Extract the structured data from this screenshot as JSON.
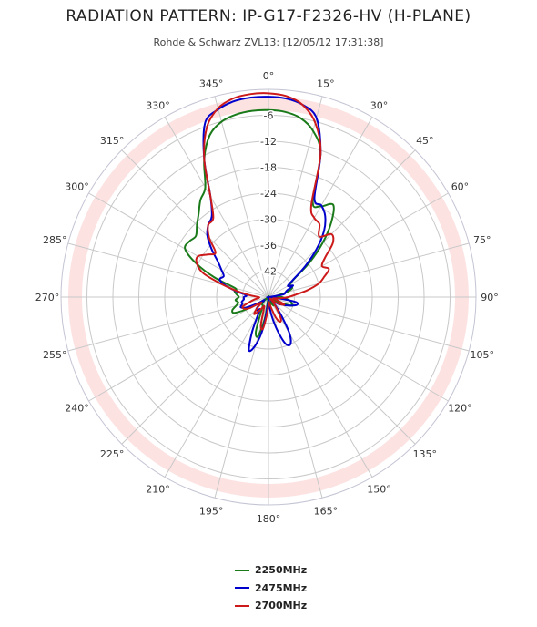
{
  "chart_data": {
    "type": "polar-line",
    "title": "RADIATION PATTERN: IP-G17-F2326-HV (H-PLANE)",
    "subtitle": "Rohde & Schwarz ZVL13: [12/05/12 17:31:38]",
    "angle_unit": "degrees",
    "angle_ticks": [
      "0°",
      "15°",
      "30°",
      "45°",
      "60°",
      "75°",
      "90°",
      "105°",
      "120°",
      "135°",
      "150°",
      "165°",
      "180°",
      "195°",
      "210°",
      "225°",
      "240°",
      "255°",
      "270°",
      "285°",
      "300°",
      "315°",
      "330°",
      "345°"
    ],
    "radial_ticks": [
      "-6",
      "-12",
      "-18",
      "-24",
      "-30",
      "-36",
      "-42"
    ],
    "radial_range": [
      -42,
      0
    ],
    "grid": true,
    "outer_band_color": "#fde2e2",
    "legend_position": "bottom-center",
    "series": [
      {
        "name": "2250MHz",
        "color": "#1a7a1a",
        "angles": [
          0,
          5,
          10,
          15,
          20,
          25,
          30,
          35,
          40,
          45,
          50,
          55,
          60,
          65,
          70,
          75,
          80,
          85,
          90,
          95,
          100,
          105,
          110,
          115,
          120,
          125,
          130,
          135,
          140,
          145,
          150,
          155,
          160,
          165,
          170,
          175,
          180,
          185,
          190,
          195,
          200,
          205,
          210,
          215,
          220,
          225,
          230,
          235,
          240,
          245,
          250,
          255,
          260,
          265,
          270,
          275,
          280,
          285,
          290,
          295,
          300,
          305,
          310,
          315,
          320,
          325,
          330,
          335,
          340,
          345,
          350,
          355
        ],
        "values": [
          -4.2,
          -4.4,
          -5.2,
          -7.2,
          -11.2,
          -20.8,
          -20.8,
          -19.2,
          -22.2,
          -26.5,
          -31.2,
          -35.8,
          -37.0,
          -36.8,
          -37.0,
          -38.2,
          -40.0,
          -40.4,
          -39.3,
          -38.5,
          -37.5,
          -37.2,
          -36.9,
          -39.0,
          -40.5,
          -41.5,
          -42,
          -42,
          -41.5,
          -40.5,
          -40.0,
          -40.5,
          -41.0,
          -40.5,
          -40.5,
          -40.0,
          -41.3,
          -42,
          -37.5,
          -33.8,
          -34.5,
          -38.0,
          -39.5,
          -40.0,
          -40.0,
          -40.5,
          -41.0,
          -41.5,
          -37.8,
          -34.5,
          -34.2,
          -35.2,
          -35.8,
          -35.3,
          -36.0,
          -35.5,
          -35.0,
          -35.0,
          -30.3,
          -25.8,
          -22.5,
          -22.4,
          -22.8,
          -21.5,
          -20.0,
          -18.0,
          -16.4,
          -11.2,
          -7.2,
          -5.3,
          -4.5,
          -4.2
        ]
      },
      {
        "name": "2475MHz",
        "color": "#0000cc",
        "angles": [
          0,
          5,
          10,
          15,
          20,
          25,
          30,
          35,
          40,
          45,
          50,
          55,
          60,
          65,
          70,
          75,
          80,
          85,
          90,
          95,
          100,
          105,
          110,
          115,
          120,
          125,
          130,
          135,
          140,
          145,
          150,
          155,
          160,
          165,
          170,
          175,
          180,
          185,
          190,
          195,
          200,
          205,
          210,
          215,
          220,
          225,
          230,
          235,
          240,
          245,
          250,
          255,
          260,
          265,
          270,
          275,
          280,
          285,
          290,
          295,
          300,
          305,
          310,
          315,
          320,
          325,
          330,
          335,
          340,
          345,
          350,
          355
        ],
        "values": [
          -1.5,
          -1.7,
          -2.5,
          -4.5,
          -11.2,
          -20.0,
          -20.6,
          -22.0,
          -24.5,
          -28.2,
          -32.3,
          -36.0,
          -37.5,
          -36.5,
          -38.0,
          -38.5,
          -39.0,
          -42,
          -42,
          -40.5,
          -36.5,
          -36.0,
          -37.0,
          -38.0,
          -39.0,
          -39.5,
          -41.0,
          -42,
          -40.0,
          -37.5,
          -33.5,
          -31.5,
          -32.0,
          -35.0,
          -38.0,
          -40.5,
          -41.8,
          -40.5,
          -35.5,
          -32.0,
          -30.5,
          -34.0,
          -37.5,
          -39.0,
          -38.5,
          -38.5,
          -39.5,
          -41.0,
          -39.5,
          -37.0,
          -36.0,
          -36.5,
          -36.5,
          -37.0,
          -37.0,
          -37.5,
          -35.5,
          -33.0,
          -31.5,
          -32.0,
          -31.0,
          -29.5,
          -27.0,
          -24.5,
          -23.0,
          -22.0,
          -18.5,
          -11.2,
          -4.5,
          -2.7,
          -1.8,
          -1.5
        ]
      },
      {
        "name": "2700MHz",
        "color": "#cc1a1a",
        "angles": [
          0,
          5,
          10,
          15,
          20,
          25,
          30,
          35,
          40,
          45,
          50,
          55,
          60,
          65,
          70,
          75,
          80,
          85,
          90,
          95,
          100,
          105,
          110,
          115,
          120,
          125,
          130,
          135,
          140,
          145,
          150,
          155,
          160,
          165,
          170,
          175,
          180,
          185,
          190,
          195,
          200,
          205,
          210,
          215,
          220,
          225,
          230,
          235,
          240,
          245,
          250,
          255,
          260,
          265,
          270,
          275,
          280,
          285,
          290,
          295,
          300,
          305,
          310,
          315,
          320,
          325,
          330,
          335,
          340,
          345,
          350,
          355
        ],
        "values": [
          -0.8,
          -1.2,
          -2.5,
          -5.5,
          -11.2,
          -21.5,
          -23.5,
          -24.0,
          -26.0,
          -24.0,
          -25.0,
          -28.0,
          -29.5,
          -28.5,
          -30.0,
          -31.5,
          -34.0,
          -36.5,
          -38.0,
          -39.5,
          -40.5,
          -41.0,
          -40.0,
          -38.5,
          -39.0,
          -40.0,
          -41.5,
          -41.0,
          -40.5,
          -39.0,
          -37.0,
          -36.5,
          -37.5,
          -39.5,
          -40.5,
          -41.0,
          -40.5,
          -38.5,
          -35.5,
          -36.0,
          -39.0,
          -40.0,
          -39.5,
          -38.5,
          -37.5,
          -38.5,
          -40.0,
          -40.0,
          -37.5,
          -36.5,
          -36.5,
          -38.0,
          -39.0,
          -40.0,
          -40.0,
          -38.5,
          -36.0,
          -32.5,
          -28.0,
          -26.0,
          -25.5,
          -27.0,
          -28.0,
          -25.0,
          -23.0,
          -22.5,
          -18.5,
          -11.2,
          -5.5,
          -2.5,
          -1.2,
          -0.8
        ]
      }
    ]
  }
}
